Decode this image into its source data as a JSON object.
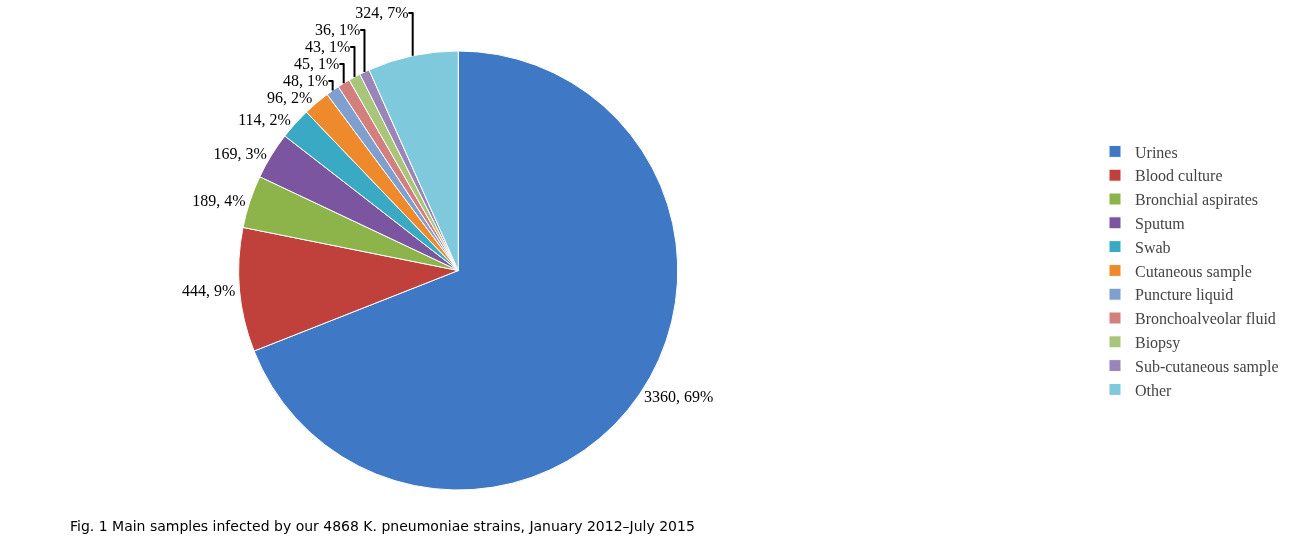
{
  "chart_data": {
    "type": "pie",
    "categories": [
      "Urines",
      "Blood culture",
      "Bronchial aspirates",
      "Sputum",
      "Swab",
      "Cutaneous sample",
      "Puncture liquid",
      "Bronchoalveolar fluid",
      "Biopsy",
      "Sub-cutaneous sample",
      "Other"
    ],
    "values": [
      3360,
      444,
      189,
      169,
      114,
      96,
      48,
      45,
      43,
      36,
      324
    ],
    "value_labels": [
      "3360, 69%",
      "444, 9%",
      "189, 4%",
      "169, 3%",
      "114, 2%",
      "96, 2%",
      "48, 1%",
      "45, 1%",
      "43, 1%",
      "36, 1%",
      "324, 7%"
    ],
    "colors": [
      "#3f78c4",
      "#c0403c",
      "#8cb44a",
      "#7b55a0",
      "#3aaac4",
      "#ee8a2c",
      "#7f9fcf",
      "#d37f7e",
      "#a9c57a",
      "#9a85b9",
      "#7fc9dc"
    ],
    "legend": "right",
    "annotations": [
      "Fig. 1 Main samples infected by our 4868 K. pneumoniae strains, January 2012–July 2015"
    ]
  }
}
